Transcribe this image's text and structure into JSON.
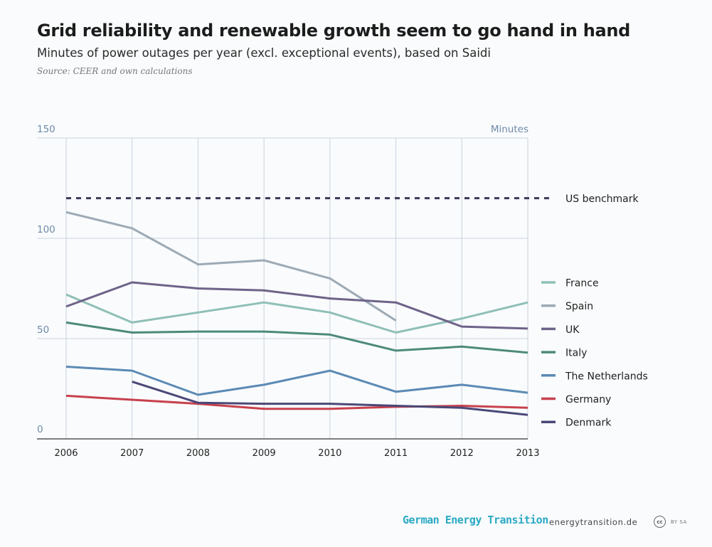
{
  "header": {
    "title": "Grid reliability and renewable growth seem to go hand in hand",
    "subtitle": "Minutes of power outages per year (excl. exceptional events), based on Saidi",
    "source": "Source: CEER and own calculations"
  },
  "footer": {
    "brand": "German Energy Transition",
    "url": "energytransition.de",
    "license_badge": "cc",
    "license_text": "BY SA"
  },
  "chart_data": {
    "type": "line",
    "ylabel": "Minutes",
    "ylim": [
      0,
      150
    ],
    "y_ticks": [
      0,
      50,
      100,
      150
    ],
    "x": [
      "2006",
      "2007",
      "2008",
      "2009",
      "2010",
      "2011",
      "2012",
      "2013"
    ],
    "grid": true,
    "legend_position": "right",
    "benchmark": {
      "name": "US benchmark",
      "value": 120,
      "color": "#3b3859"
    },
    "series": [
      {
        "name": "France",
        "color": "#8fbfb6",
        "values": [
          72,
          58,
          63,
          68,
          63,
          53,
          60,
          68
        ]
      },
      {
        "name": "Spain",
        "color": "#9daab5",
        "values": [
          113,
          105,
          87,
          89,
          80,
          59,
          null,
          null
        ]
      },
      {
        "name": "UK",
        "color": "#6e6389",
        "values": [
          66,
          78,
          75,
          74,
          70,
          68,
          56,
          55
        ]
      },
      {
        "name": "Italy",
        "color": "#4d8a7a",
        "values": [
          58,
          53,
          53.5,
          53.5,
          52,
          44,
          46,
          43
        ]
      },
      {
        "name": "The Netherlands",
        "color": "#5b8ab5",
        "values": [
          36,
          34,
          22,
          27,
          34,
          23.5,
          27,
          23
        ]
      },
      {
        "name": "Germany",
        "color": "#c8414e",
        "values": [
          21.5,
          19.5,
          17.5,
          15,
          15,
          16,
          16.5,
          15.5
        ]
      },
      {
        "name": "Denmark",
        "color": "#4a4877",
        "values": [
          null,
          28.5,
          18,
          17.5,
          17.5,
          16.5,
          15.5,
          12
        ]
      }
    ]
  }
}
